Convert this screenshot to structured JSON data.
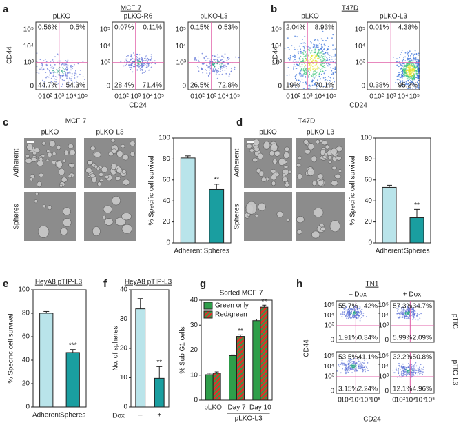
{
  "chart_data": [
    {
      "type": "flow",
      "panel": "a",
      "title": "MCF-7",
      "ylabel": "CD44",
      "xlabel": "CD24",
      "yticks": [
        "10⁵",
        "10⁴",
        "10³",
        "0"
      ],
      "xticks": [
        "0",
        "10²",
        "10³",
        "10⁴",
        "10⁵"
      ],
      "plots": [
        {
          "name": "pLKO",
          "quadrants": [
            "0.56%",
            "0.5%",
            "44.7%",
            "54.3%"
          ]
        },
        {
          "name": "pLKO-R6",
          "quadrants": [
            "0.07%",
            "0.11%",
            "28.4%",
            "71.4%"
          ]
        },
        {
          "name": "pLKO-L3",
          "quadrants": [
            "0.15%",
            "0.53%",
            "26.5%",
            "72.8%"
          ]
        }
      ]
    },
    {
      "type": "flow",
      "panel": "b",
      "title": "T47D",
      "ylabel": "CD44",
      "xlabel": "CD24",
      "yticks": [
        "10⁵",
        "10⁴",
        "10³",
        "0"
      ],
      "xticks": [
        "0",
        "10²",
        "10³",
        "10⁴",
        "10⁵"
      ],
      "plots": [
        {
          "name": "pLKO",
          "quadrants": [
            "2.04%",
            "8.93%",
            "19%",
            "70.1%"
          ]
        },
        {
          "name": "pLKO-L3",
          "quadrants": [
            "0.01%",
            "4.38%",
            "0.38%",
            "95.2%"
          ]
        }
      ]
    },
    {
      "type": "images",
      "panel": "c",
      "title": "MCF-7",
      "columns": [
        "pLKO",
        "pLKO-L3"
      ],
      "rows": [
        "Adherent",
        "Spheres"
      ]
    },
    {
      "type": "bar",
      "categories": [
        "Adherent",
        "Spheres"
      ],
      "values": [
        81,
        51
      ],
      "errors": [
        2,
        5
      ],
      "colors": [
        "#b9e4ea",
        "#1a9ea0"
      ],
      "significance": [
        null,
        "**"
      ],
      "ylabel": "% Specific cell survival",
      "ylim": [
        0,
        100
      ],
      "yticks": [
        0,
        20,
        40,
        60,
        80,
        100
      ]
    },
    {
      "type": "images",
      "panel": "d",
      "title": "T47D",
      "columns": [
        "pLKO",
        "pLKO-L3"
      ],
      "rows": [
        "Adherent",
        "Spheres"
      ]
    },
    {
      "type": "bar",
      "categories": [
        "Adherent",
        "Spheres"
      ],
      "values": [
        53,
        24
      ],
      "errors": [
        2,
        8
      ],
      "colors": [
        "#b9e4ea",
        "#1a9ea0"
      ],
      "significance": [
        null,
        "**"
      ],
      "ylabel": "% Specific cell survival",
      "ylim": [
        0,
        100
      ],
      "yticks": [
        0,
        20,
        40,
        60,
        80,
        100
      ]
    },
    {
      "type": "bar",
      "panel": "e",
      "title": "HeyA8 pTIP-L3",
      "categories": [
        "Adherent",
        "Spheres"
      ],
      "values": [
        80,
        46.5
      ],
      "errors": [
        1.5,
        2.5
      ],
      "colors": [
        "#b9e4ea",
        "#1a9ea0"
      ],
      "significance": [
        null,
        "***"
      ],
      "ylabel": "% Specific cell survival",
      "ylim": [
        0,
        100
      ],
      "yticks": [
        0,
        20,
        40,
        60,
        80,
        100
      ]
    },
    {
      "type": "bar",
      "panel": "f",
      "title": "HeyA8 pTIP-L3",
      "categories": [
        "–",
        "+"
      ],
      "xlabel": "Dox",
      "values": [
        33.5,
        9.8
      ],
      "errors": [
        3.5,
        4
      ],
      "colors": [
        "#b9e4ea",
        "#1a9ea0"
      ],
      "significance": [
        null,
        "**"
      ],
      "ylabel": "No. of spheres",
      "ylim": [
        0,
        40
      ],
      "yticks": [
        0,
        10,
        20,
        30,
        40
      ]
    },
    {
      "type": "grouped_bar",
      "panel": "g",
      "title": "Sorted MCF-7",
      "categories": [
        "pLKO",
        "Day 7",
        "Day 10"
      ],
      "x_group_label": "pLKO-L3",
      "series": [
        {
          "name": "Green only",
          "color": "#2e9e4a",
          "values": [
            10.2,
            17.8,
            31.8
          ],
          "errors": [
            0.6,
            0.3,
            0.6
          ],
          "significance": [
            null,
            null,
            null
          ]
        },
        {
          "name": "Red/green",
          "color": "#d9342b",
          "values": [
            10.8,
            25.5,
            37.2
          ],
          "errors": [
            0.5,
            0.6,
            0.8
          ],
          "significance": [
            null,
            "**",
            "**"
          ]
        }
      ],
      "ylabel": "% Sub G1 cells",
      "ylim": [
        0,
        40
      ],
      "yticks": [
        0,
        10,
        20,
        30,
        40
      ]
    },
    {
      "type": "flow",
      "panel": "h",
      "title": "TN1",
      "ylabel": "CD44",
      "xlabel": "CD24",
      "columns": [
        "– Dox",
        "+ Dox"
      ],
      "rows": [
        "pTIG",
        "pTIG-L3"
      ],
      "yticks": [
        "10⁵",
        "10⁴",
        "10³",
        "0"
      ],
      "xticks": [
        "0",
        "10²",
        "10³",
        "10⁴",
        "10⁵"
      ],
      "plots": [
        {
          "quadrants": [
            "55.7%",
            "42%",
            "1.91%",
            "0.34%"
          ]
        },
        {
          "quadrants": [
            "57.3%",
            "34.7%",
            "5.99%",
            "2.09%"
          ]
        },
        {
          "quadrants": [
            "53.5%",
            "41.1%",
            "3.15%",
            "2.24%"
          ]
        },
        {
          "quadrants": [
            "32.2%",
            "50.8%",
            "12.1%",
            "4.96%"
          ]
        }
      ]
    }
  ]
}
